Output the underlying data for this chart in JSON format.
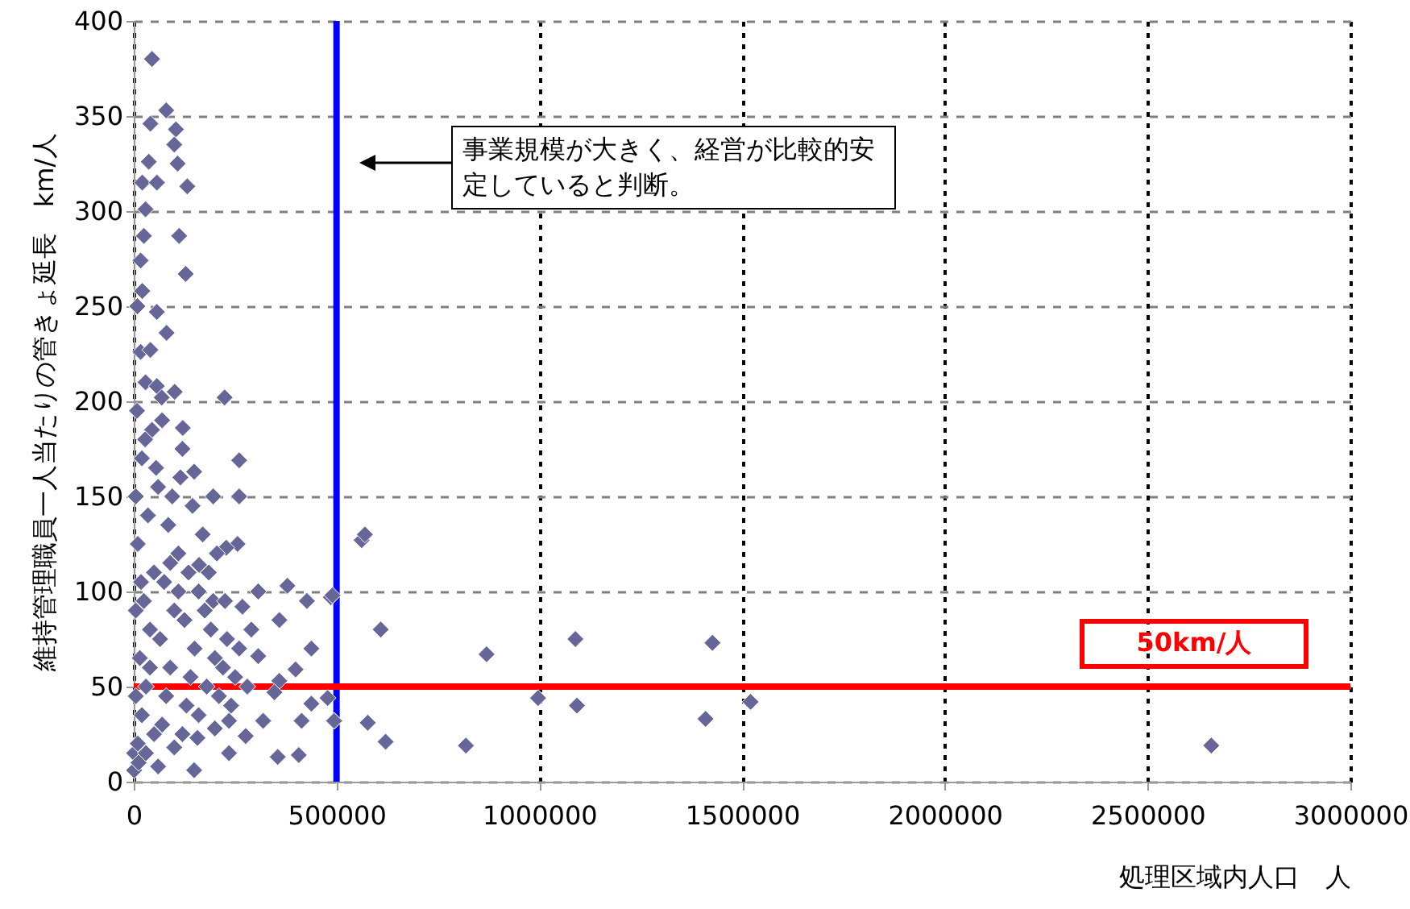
{
  "chart_data": {
    "type": "scatter",
    "xlabel": "処理区域内人口　人",
    "ylabel": "維持管理職員一人当たりの管きょ延長　km/人",
    "xlim": [
      0,
      3000000
    ],
    "xticks": [
      0,
      500000,
      1000000,
      1500000,
      2000000,
      2500000,
      3000000
    ],
    "ylim": [
      0,
      400
    ],
    "yticks": [
      0,
      50,
      100,
      150,
      200,
      250,
      300,
      350,
      400
    ],
    "grid": true,
    "marker": "diamond",
    "ref_lines": [
      {
        "axis": "x",
        "value": 500000,
        "label": null,
        "color": "#0000ff"
      },
      {
        "axis": "y",
        "value": 50,
        "label": "50km/人",
        "color": "#ff0000"
      }
    ],
    "annotations": [
      "事業規模が大きく、経営が比較的安定していると判断。"
    ],
    "series": [
      {
        "color": "#666699",
        "x": [
          45000,
          80000,
          41000,
          104000,
          100000,
          37000,
          108000,
          21000,
          57000,
          132000,
          29000,
          25000,
          112000,
          17000,
          128000,
          21000,
          9000,
          57000,
          81000,
          17000,
          41000,
          29000,
          101000,
          224000,
          57000,
          69000,
          121000,
          260000,
          149000,
          196000,
          260000,
          256000,
          228000,
          161000,
          307000,
          379000,
          427000,
          486000,
          268000,
          359000,
          196000,
          438000,
          307000,
          399000,
          359000,
          347000,
          438000,
          319000,
          414000,
          494000,
          235000,
          276000,
          355000,
          407000,
          235000,
          157000,
          149000,
          1000,
          1000,
          562000,
          570000,
          490000,
          609000,
          870000,
          1089000,
          1427000,
          478000,
          494000,
          577000,
          621000,
          819000,
          997000,
          1093000,
          1410000,
          1521000,
          2657000,
          10000,
          20000,
          30000,
          15000,
          40000,
          25000,
          50000,
          10000,
          35000,
          60000,
          20000,
          45000,
          8000,
          70000,
          80000,
          90000,
          65000,
          100000,
          75000,
          110000,
          85000,
          95000,
          55000,
          120000,
          70000,
          130000,
          140000,
          150000,
          125000,
          160000,
          135000,
          170000,
          145000,
          115000,
          180000,
          200000,
          190000,
          210000,
          220000,
          230000,
          175000,
          240000,
          250000,
          260000,
          185000,
          205000,
          5000,
          12000,
          30000,
          50000,
          100000,
          60000,
          40000,
          18000,
          5000,
          28000,
          90000,
          110000,
          160000,
          280000,
          290000,
          225000,
          200000,
          120000,
          5000
        ],
        "values": [
          380,
          353,
          346,
          343,
          335,
          326,
          325,
          315,
          315,
          313,
          301,
          287,
          287,
          274,
          267,
          258,
          250,
          247,
          236,
          226,
          227,
          210,
          205,
          202,
          208,
          202,
          186,
          169,
          163,
          150,
          150,
          125,
          123,
          114,
          100,
          103,
          95,
          97,
          92,
          85,
          95,
          70,
          66,
          59,
          53,
          47,
          41,
          32,
          32,
          32,
          32,
          24,
          13,
          14,
          15,
          23,
          6,
          6,
          15,
          127,
          130,
          98,
          80,
          67,
          75,
          73,
          44,
          32,
          31,
          21,
          19,
          44,
          40,
          33,
          42,
          19,
          20,
          35,
          50,
          65,
          80,
          95,
          110,
          125,
          140,
          155,
          170,
          185,
          195,
          30,
          45,
          60,
          75,
          90,
          105,
          120,
          135,
          150,
          165,
          175,
          190,
          40,
          55,
          70,
          85,
          100,
          110,
          130,
          145,
          160,
          50,
          65,
          80,
          45,
          60,
          75,
          90,
          40,
          55,
          70,
          110,
          120,
          45,
          10,
          15,
          25,
          18,
          8,
          60,
          105,
          150,
          180,
          115,
          100,
          35,
          50,
          80,
          95,
          28,
          25,
          90
        ]
      }
    ]
  }
}
